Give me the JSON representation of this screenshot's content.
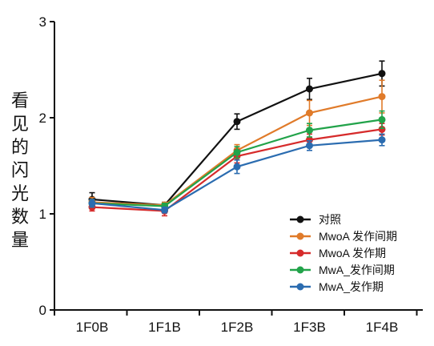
{
  "chart_data": {
    "type": "line",
    "title": "",
    "xlabel": "",
    "ylabel": "看见的闪光数量",
    "categories": [
      "1F0B",
      "1F1B",
      "1F2B",
      "1F3B",
      "1F4B"
    ],
    "ylim": [
      0,
      3
    ],
    "yticks": [
      0,
      1,
      2,
      3
    ],
    "grid": false,
    "legend_position": "bottom-right",
    "series": [
      {
        "name": "对照",
        "color": "#111111",
        "values": [
          1.15,
          1.09,
          1.96,
          2.3,
          2.46
        ],
        "errors": [
          0.07,
          0.03,
          0.08,
          0.11,
          0.13
        ]
      },
      {
        "name": "MwoA 发作间期",
        "color": "#e07b2a",
        "values": [
          1.12,
          1.09,
          1.66,
          2.05,
          2.22
        ],
        "errors": [
          0.05,
          0.03,
          0.06,
          0.13,
          0.17
        ]
      },
      {
        "name": "MwoA 发作期",
        "color": "#d62b2b",
        "values": [
          1.07,
          1.03,
          1.6,
          1.77,
          1.88
        ],
        "errors": [
          0.04,
          0.05,
          0.07,
          0.06,
          0.06
        ]
      },
      {
        "name": "MwA_发作间期",
        "color": "#22a34a",
        "values": [
          1.11,
          1.08,
          1.64,
          1.87,
          1.98
        ],
        "errors": [
          0.04,
          0.03,
          0.06,
          0.07,
          0.09
        ]
      },
      {
        "name": "MwA_发作期",
        "color": "#2b6cb0",
        "values": [
          1.11,
          1.04,
          1.49,
          1.71,
          1.77
        ],
        "errors": [
          0.04,
          0.03,
          0.07,
          0.05,
          0.06
        ]
      }
    ]
  }
}
